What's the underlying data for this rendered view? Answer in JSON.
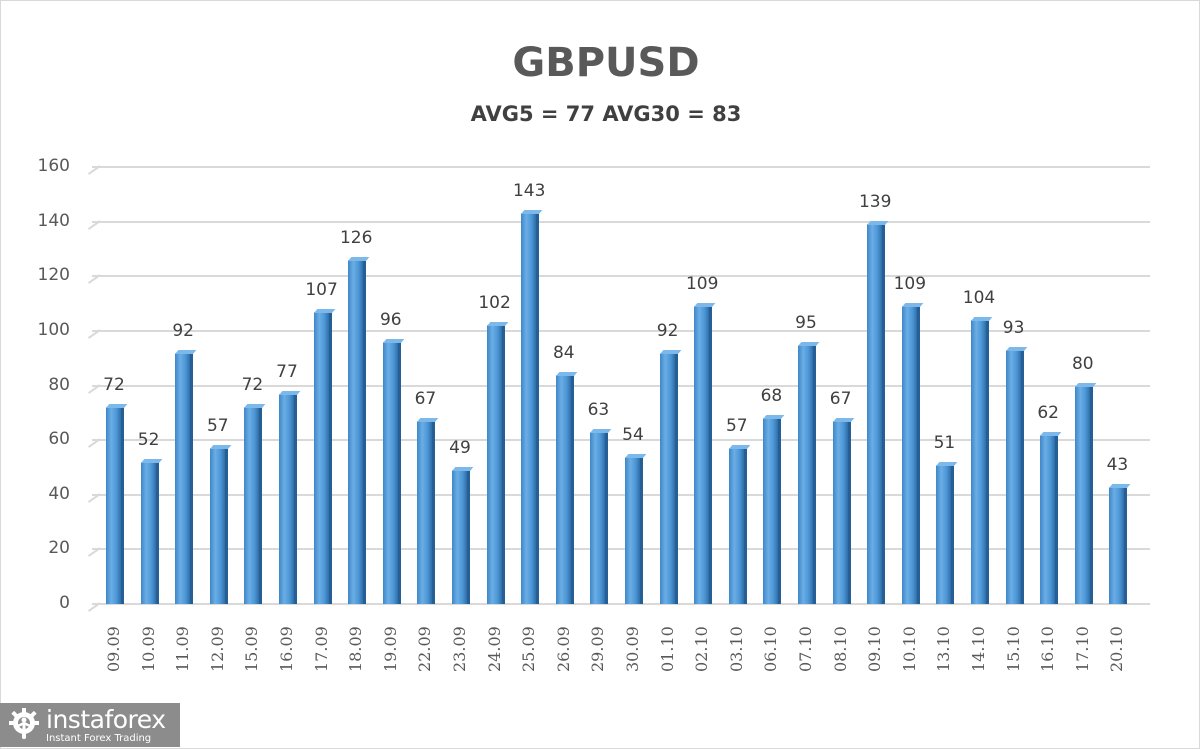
{
  "chart_data": {
    "type": "bar",
    "title": "GBPUSD",
    "subtitle": "AVG5 = 77 AVG30 = 83",
    "xlabel": "",
    "ylabel": "",
    "ylim": [
      0,
      160
    ],
    "yticks": [
      0,
      20,
      40,
      60,
      80,
      100,
      120,
      140,
      160
    ],
    "grid": true,
    "legend": null,
    "style": "3d-column",
    "bar_color": "#4d97d6",
    "categories": [
      "09.09",
      "10.09",
      "11.09",
      "12.09",
      "15.09",
      "16.09",
      "17.09",
      "18.09",
      "19.09",
      "22.09",
      "23.09",
      "24.09",
      "25.09",
      "26.09",
      "29.09",
      "30.09",
      "01.10",
      "02.10",
      "03.10",
      "06.10",
      "07.10",
      "08.10",
      "09.10",
      "10.10",
      "13.10",
      "14.10",
      "15.10",
      "16.10",
      "17.10",
      "20.10"
    ],
    "values": [
      72,
      52,
      92,
      57,
      72,
      77,
      107,
      126,
      96,
      67,
      49,
      102,
      143,
      84,
      63,
      54,
      92,
      109,
      57,
      68,
      95,
      67,
      139,
      109,
      51,
      104,
      93,
      62,
      80,
      43
    ]
  },
  "ytick_labels": [
    "0",
    "20",
    "40",
    "60",
    "80",
    "100",
    "120",
    "140",
    "160"
  ],
  "watermark": {
    "brand": "instaforex",
    "tagline": "Instant Forex Trading",
    "icon": "gear-person-logo-icon"
  }
}
